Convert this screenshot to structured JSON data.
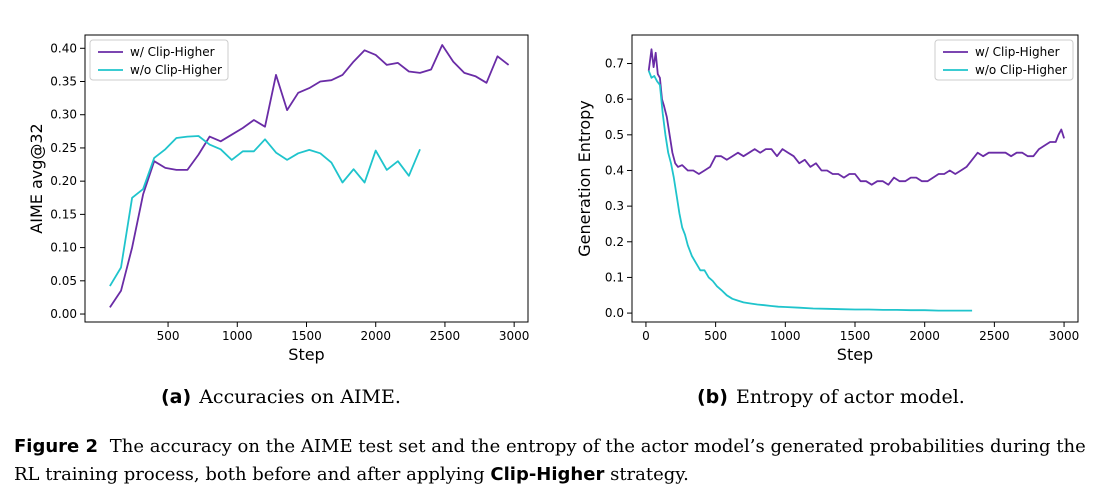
{
  "chart_data": [
    {
      "type": "line",
      "xlabel": "Step",
      "ylabel": "AIME avg@32",
      "xlim": [
        -100,
        3100
      ],
      "ylim": [
        -0.012,
        0.42
      ],
      "xticks": [
        500,
        1000,
        1500,
        2000,
        2500,
        3000
      ],
      "xtick_labels": [
        "500",
        "1000",
        "1500",
        "2000",
        "2500",
        "3000"
      ],
      "yticks": [
        0.0,
        0.05,
        0.1,
        0.15,
        0.2,
        0.25,
        0.3,
        0.35,
        0.4
      ],
      "ytick_labels": [
        "0.00",
        "0.05",
        "0.10",
        "0.15",
        "0.20",
        "0.25",
        "0.30",
        "0.35",
        "0.40"
      ],
      "grid": false,
      "legend": "top-left",
      "series": [
        {
          "name": "w/ Clip-Higher",
          "color": "#6a2ca6",
          "x": [
            80,
            160,
            240,
            320,
            400,
            480,
            560,
            640,
            720,
            800,
            880,
            960,
            1040,
            1120,
            1200,
            1280,
            1360,
            1440,
            1520,
            1600,
            1680,
            1760,
            1840,
            1920,
            2000,
            2080,
            2160,
            2240,
            2320,
            2400,
            2480,
            2560,
            2640,
            2720,
            2800,
            2880,
            2960
          ],
          "y": [
            0.01,
            0.035,
            0.1,
            0.18,
            0.23,
            0.22,
            0.217,
            0.217,
            0.24,
            0.267,
            0.26,
            0.27,
            0.28,
            0.292,
            0.282,
            0.36,
            0.307,
            0.333,
            0.34,
            0.35,
            0.352,
            0.36,
            0.38,
            0.397,
            0.39,
            0.375,
            0.378,
            0.365,
            0.363,
            0.368,
            0.405,
            0.38,
            0.363,
            0.358,
            0.348,
            0.388,
            0.375
          ]
        },
        {
          "name": "w/o Clip-Higher",
          "color": "#1fc4cc",
          "x": [
            80,
            160,
            240,
            320,
            400,
            480,
            560,
            640,
            720,
            800,
            880,
            960,
            1040,
            1120,
            1200,
            1280,
            1360,
            1440,
            1520,
            1600,
            1680,
            1760,
            1840,
            1920,
            2000,
            2080,
            2160,
            2240,
            2320
          ],
          "y": [
            0.042,
            0.07,
            0.175,
            0.188,
            0.235,
            0.248,
            0.265,
            0.267,
            0.268,
            0.255,
            0.248,
            0.232,
            0.245,
            0.245,
            0.263,
            0.243,
            0.232,
            0.242,
            0.247,
            0.242,
            0.228,
            0.198,
            0.218,
            0.198,
            0.246,
            0.217,
            0.23,
            0.208,
            0.248
          ]
        }
      ]
    },
    {
      "type": "line",
      "xlabel": "Step",
      "ylabel": "Generation Entropy",
      "xlim": [
        -100,
        3100
      ],
      "ylim": [
        -0.025,
        0.78
      ],
      "xticks": [
        0,
        500,
        1000,
        1500,
        2000,
        2500,
        3000
      ],
      "xtick_labels": [
        "0",
        "500",
        "1000",
        "1500",
        "2000",
        "2500",
        "3000"
      ],
      "yticks": [
        0.0,
        0.1,
        0.2,
        0.3,
        0.4,
        0.5,
        0.6,
        0.7
      ],
      "ytick_labels": [
        "0.0",
        "0.1",
        "0.2",
        "0.3",
        "0.4",
        "0.5",
        "0.6",
        "0.7"
      ],
      "grid": false,
      "legend": "top-right",
      "series": [
        {
          "name": "w/ Clip-Higher",
          "color": "#6a2ca6",
          "x": [
            20,
            40,
            55,
            70,
            85,
            100,
            115,
            130,
            150,
            170,
            190,
            210,
            230,
            260,
            300,
            340,
            380,
            420,
            460,
            500,
            540,
            580,
            620,
            660,
            700,
            740,
            780,
            820,
            860,
            900,
            940,
            980,
            1020,
            1060,
            1100,
            1140,
            1180,
            1220,
            1260,
            1300,
            1340,
            1380,
            1420,
            1460,
            1500,
            1540,
            1580,
            1620,
            1660,
            1700,
            1740,
            1780,
            1820,
            1860,
            1900,
            1940,
            1980,
            2020,
            2060,
            2100,
            2140,
            2180,
            2220,
            2260,
            2300,
            2340,
            2380,
            2420,
            2460,
            2500,
            2540,
            2580,
            2620,
            2660,
            2700,
            2740,
            2780,
            2820,
            2860,
            2900,
            2940,
            2960,
            2980,
            3000
          ],
          "y": [
            0.68,
            0.74,
            0.69,
            0.73,
            0.67,
            0.66,
            0.6,
            0.58,
            0.55,
            0.5,
            0.45,
            0.42,
            0.41,
            0.415,
            0.4,
            0.4,
            0.39,
            0.4,
            0.41,
            0.44,
            0.44,
            0.43,
            0.44,
            0.45,
            0.44,
            0.45,
            0.46,
            0.45,
            0.46,
            0.46,
            0.44,
            0.46,
            0.45,
            0.44,
            0.42,
            0.43,
            0.41,
            0.42,
            0.4,
            0.4,
            0.39,
            0.39,
            0.38,
            0.39,
            0.39,
            0.37,
            0.37,
            0.36,
            0.37,
            0.37,
            0.36,
            0.38,
            0.37,
            0.37,
            0.38,
            0.38,
            0.37,
            0.37,
            0.38,
            0.39,
            0.39,
            0.4,
            0.39,
            0.4,
            0.41,
            0.43,
            0.45,
            0.44,
            0.45,
            0.45,
            0.45,
            0.45,
            0.44,
            0.45,
            0.45,
            0.44,
            0.44,
            0.46,
            0.47,
            0.48,
            0.48,
            0.5,
            0.515,
            0.49
          ]
        },
        {
          "name": "w/o Clip-Higher",
          "color": "#1fc4cc",
          "x": [
            20,
            40,
            60,
            80,
            100,
            120,
            140,
            160,
            180,
            200,
            220,
            240,
            260,
            280,
            300,
            330,
            360,
            390,
            420,
            450,
            480,
            510,
            540,
            580,
            620,
            660,
            700,
            750,
            800,
            850,
            900,
            950,
            1000,
            1100,
            1200,
            1300,
            1400,
            1500,
            1600,
            1700,
            1800,
            1900,
            2000,
            2100,
            2200,
            2300,
            2340
          ],
          "y": [
            0.68,
            0.66,
            0.665,
            0.65,
            0.64,
            0.56,
            0.5,
            0.45,
            0.42,
            0.38,
            0.33,
            0.28,
            0.24,
            0.22,
            0.19,
            0.16,
            0.14,
            0.12,
            0.12,
            0.1,
            0.09,
            0.075,
            0.065,
            0.05,
            0.04,
            0.035,
            0.03,
            0.027,
            0.024,
            0.022,
            0.02,
            0.018,
            0.017,
            0.015,
            0.013,
            0.012,
            0.011,
            0.01,
            0.01,
            0.009,
            0.009,
            0.008,
            0.008,
            0.007,
            0.007,
            0.007,
            0.007
          ]
        }
      ]
    }
  ],
  "subcaptions": [
    {
      "tag": "(a)",
      "text": "Accuracies on AIME."
    },
    {
      "tag": "(b)",
      "text": "Entropy of actor model."
    }
  ],
  "figure_caption": {
    "label": "Figure 2",
    "text_before": "The accuracy on the AIME test set and the entropy of the actor model’s generated probabilities during the RL training process, both before and after applying",
    "strategy": "Clip-Higher",
    "text_after": "strategy."
  }
}
